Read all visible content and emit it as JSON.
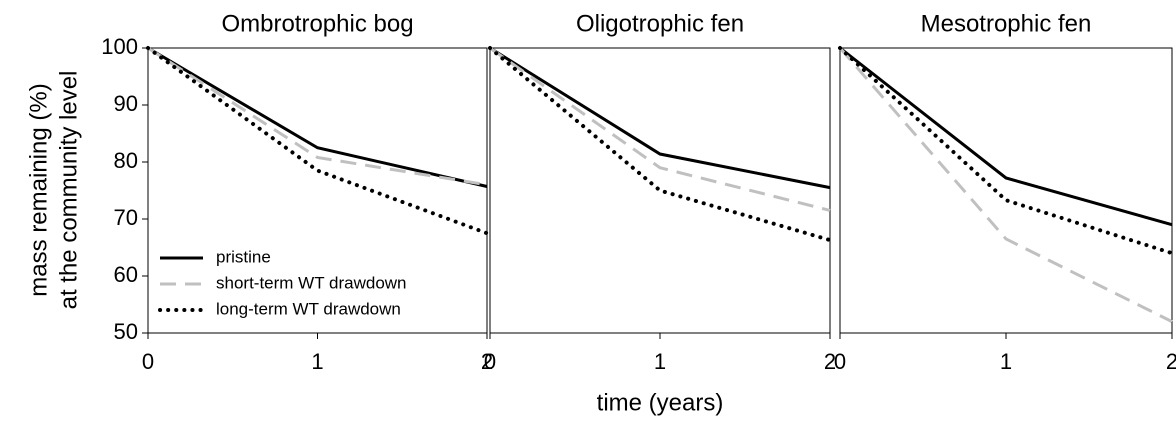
{
  "y_axis_label": [
    "mass remaining (%)",
    "at the community level"
  ],
  "x_axis_label": "time (years)",
  "chart_data": [
    {
      "type": "line",
      "title": "Ombrotrophic bog",
      "x": [
        0,
        1,
        2
      ],
      "xlim": [
        0,
        2
      ],
      "xticks": [
        0,
        1,
        2
      ],
      "ylim": [
        50,
        100
      ],
      "yticks": [
        50,
        60,
        70,
        80,
        90,
        100
      ],
      "legend": "lower left",
      "series": [
        {
          "name": "pristine",
          "color": "#000000",
          "style": "solid",
          "values": [
            100,
            82.5,
            75.7
          ]
        },
        {
          "name": "short-term WT drawdown",
          "color": "#c0c0c0",
          "style": "dashed",
          "values": [
            100,
            80.8,
            76
          ]
        },
        {
          "name": "long-term WT drawdown",
          "color": "#000000",
          "style": "dotted",
          "values": [
            100,
            78.5,
            67.5
          ]
        }
      ]
    },
    {
      "type": "line",
      "title": "Oligotrophic fen",
      "x": [
        0,
        1,
        2
      ],
      "xlim": [
        0,
        2
      ],
      "xticks": [
        0,
        1,
        2
      ],
      "ylim": [
        50,
        100
      ],
      "series": [
        {
          "color": "#000000",
          "style": "solid",
          "values": [
            100,
            81.4,
            75.5
          ]
        },
        {
          "color": "#c0c0c0",
          "style": "dashed",
          "values": [
            100,
            79,
            71.5
          ]
        },
        {
          "color": "#000000",
          "style": "dotted",
          "values": [
            100,
            75,
            66.3
          ]
        }
      ]
    },
    {
      "type": "line",
      "title": "Mesotrophic fen",
      "x": [
        0,
        1,
        2
      ],
      "xlim": [
        0,
        2
      ],
      "xticks": [
        0,
        1,
        2
      ],
      "ylim": [
        50,
        100
      ],
      "series": [
        {
          "color": "#000000",
          "style": "solid",
          "values": [
            100,
            77.2,
            69
          ]
        },
        {
          "color": "#c0c0c0",
          "style": "dashed",
          "values": [
            100,
            66.5,
            52
          ]
        },
        {
          "color": "#000000",
          "style": "dotted",
          "values": [
            100,
            73.3,
            64
          ]
        }
      ]
    }
  ]
}
